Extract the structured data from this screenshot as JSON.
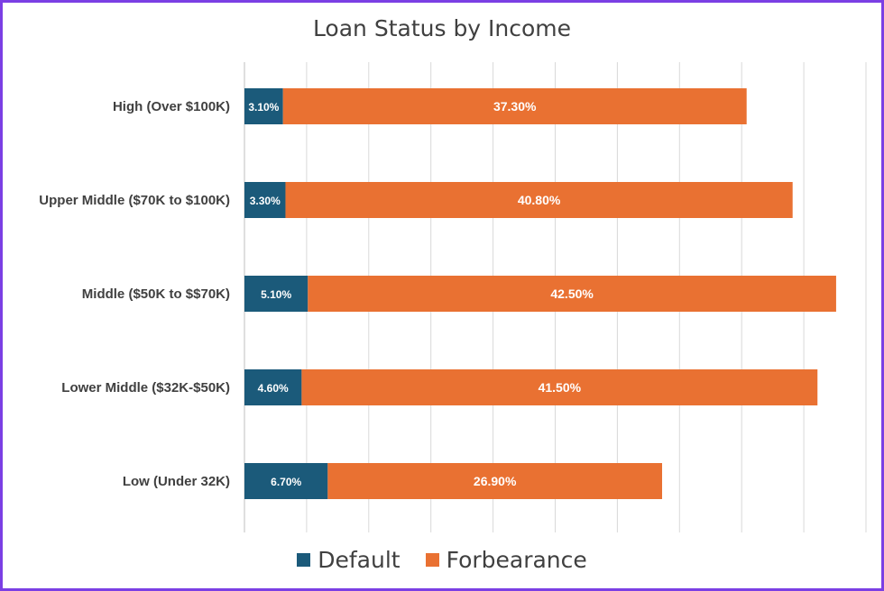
{
  "chart_data": {
    "type": "bar",
    "orientation": "horizontal",
    "stacked": true,
    "title": "Loan Status by Income",
    "categories": [
      "High (Over $100K)",
      "Upper Middle ($70K to $100K)",
      "Middle ($50K to $$70K)",
      "Lower Middle ($32K-$50K)",
      "Low (Under 32K)"
    ],
    "series": [
      {
        "name": "Default",
        "color": "#1b5a7a",
        "values": [
          3.1,
          3.3,
          5.1,
          4.6,
          6.7
        ],
        "labels": [
          "3.10%",
          "3.30%",
          "5.10%",
          "4.60%",
          "6.70%"
        ]
      },
      {
        "name": "Forbearance",
        "color": "#e97132",
        "values": [
          37.3,
          40.8,
          42.5,
          41.5,
          26.9
        ],
        "labels": [
          "37.30%",
          "40.80%",
          "42.50%",
          "41.50%",
          "26.90%"
        ]
      }
    ],
    "xlim": [
      0,
      50
    ],
    "grid": "vertical gridlines",
    "legend": "bottom"
  }
}
